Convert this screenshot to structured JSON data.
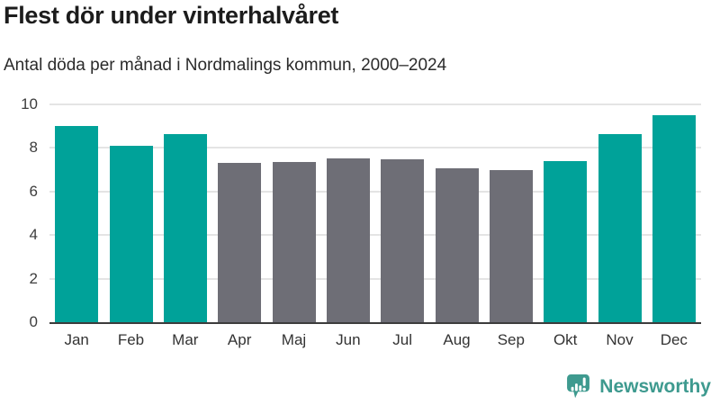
{
  "header": {
    "title": "Flest dör under vinterhalvåret",
    "subtitle": "Antal döda per månad i Nordmalings kommun, 2000–2024"
  },
  "chart_data": {
    "type": "bar",
    "title": "Flest dör under vinterhalvåret",
    "subtitle": "Antal döda per månad i Nordmalings kommun, 2000–2024",
    "categories": [
      "Jan",
      "Feb",
      "Mar",
      "Apr",
      "Maj",
      "Jun",
      "Jul",
      "Aug",
      "Sep",
      "Okt",
      "Nov",
      "Dec"
    ],
    "values": [
      9.0,
      8.08,
      8.64,
      7.32,
      7.36,
      7.52,
      7.48,
      7.08,
      7.0,
      7.4,
      8.64,
      9.52
    ],
    "bar_groups": [
      "winter",
      "winter",
      "winter",
      "summer",
      "summer",
      "summer",
      "summer",
      "summer",
      "summer",
      "winter",
      "winter",
      "winter"
    ],
    "group_colors": {
      "winter": "#00A299",
      "summer": "#6E6E76"
    },
    "xlabel": "",
    "ylabel": "",
    "ylim": [
      0,
      10
    ],
    "yticks": [
      0,
      2,
      4,
      6,
      8,
      10
    ],
    "grid": true,
    "legend": "none",
    "gridline_color": "#e4e4e4",
    "axis_line_color": "#3c3c3c"
  },
  "footer": {
    "brand": "Newsworthy",
    "brand_color": "#3E9A8F",
    "logo_icon": "newsworthy-speech-bubble-chart-icon"
  }
}
